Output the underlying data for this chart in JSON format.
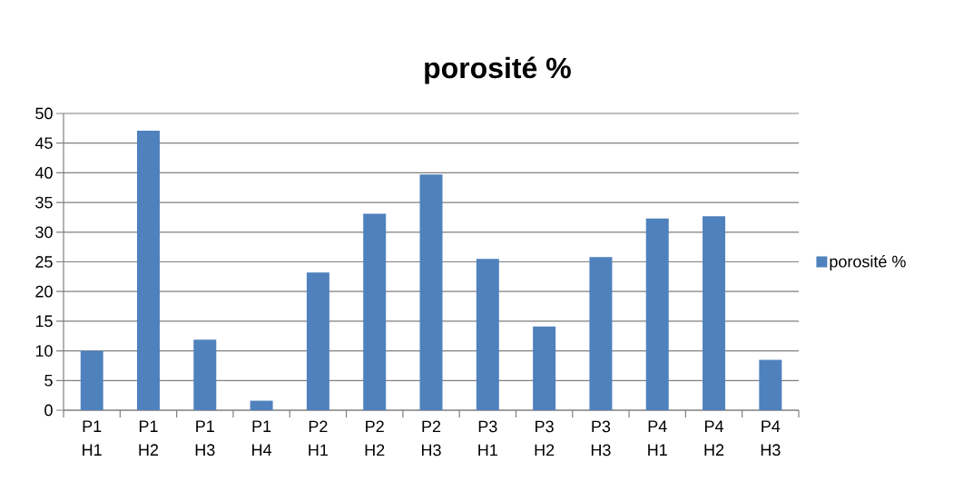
{
  "chart_data": {
    "type": "bar",
    "title": "porosité %",
    "categories": [
      "P1 H1",
      "P1 H2",
      "P1 H3",
      "P1 H4",
      "P2 H1",
      "P2 H2",
      "P2 H3",
      "P3 H1",
      "P3 H2",
      "P3 H3",
      "P4 H1",
      "P4 H2",
      "P4 H3"
    ],
    "series": [
      {
        "name": "porosité %",
        "color": "#4f81bd",
        "values": [
          10,
          47.1,
          11.9,
          1.6,
          23.2,
          33.1,
          39.7,
          25.5,
          14.1,
          25.8,
          32.3,
          32.7,
          8.5
        ]
      }
    ],
    "ylim": [
      0,
      50
    ],
    "yticks": [
      0,
      5,
      10,
      15,
      20,
      25,
      30,
      35,
      40,
      45,
      50
    ],
    "grid": "y",
    "legend": "right"
  }
}
